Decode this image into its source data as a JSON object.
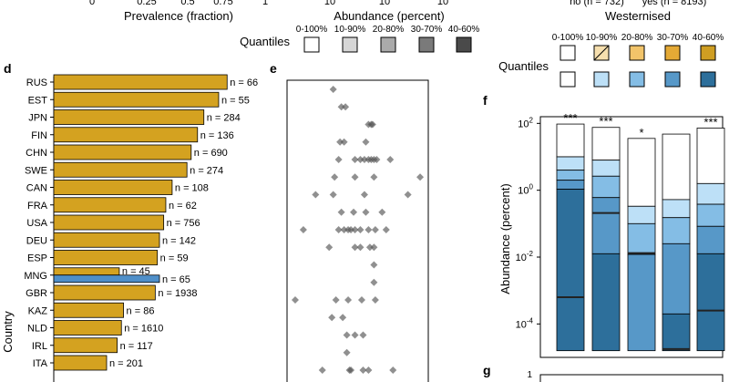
{
  "header": {
    "ticks_a": [
      "0",
      "0.25",
      "0.5",
      "0.75",
      "1"
    ],
    "label_a": "Prevalence (fraction)",
    "ticks_b": [
      "10",
      "10",
      "10"
    ],
    "label_b": "Abundance (percent)",
    "ticks_c": [
      "no (n = 732)",
      "yes (n = 8193)"
    ],
    "label_c": "Westernised"
  },
  "quantiles_gray": {
    "title": "Quantiles",
    "labels": [
      "0-100%",
      "10-90%",
      "20-80%",
      "30-70%",
      "40-60%"
    ],
    "colors": [
      "#ffffff",
      "#d6d6d6",
      "#aaaaaa",
      "#7a7a7a",
      "#4a4a4a"
    ]
  },
  "quantiles_color": {
    "title": "Quantiles",
    "labels": [
      "0-100%",
      "10-90%",
      "20-80%",
      "30-70%",
      "40-60%"
    ],
    "gold": [
      "#ffffff",
      "#f6dfae",
      "#f2c46a",
      "#e4a935",
      "#cf9e22"
    ],
    "blue": [
      "#ffffff",
      "#bde0f7",
      "#84bde5",
      "#5798c8",
      "#2d6f9b"
    ]
  },
  "panel_letters": {
    "d": "d",
    "e": "e",
    "f": "f",
    "g": "g"
  },
  "chart_data": [
    {
      "panel": "d",
      "type": "bar",
      "orientation": "horizontal",
      "ylabel": "Country",
      "xlim": [
        0,
        1
      ],
      "categories": [
        "RUS",
        "EST",
        "JPN",
        "FIN",
        "CHN",
        "SWE",
        "CAN",
        "FRA",
        "USA",
        "DEU",
        "ESP",
        "MNG",
        "GBR",
        "KAZ",
        "NLD",
        "IRL",
        "ITA"
      ],
      "values": [
        0.82,
        0.78,
        0.71,
        0.68,
        0.65,
        0.63,
        0.56,
        0.53,
        0.52,
        0.5,
        0.49,
        0.31,
        0.48,
        0.33,
        0.32,
        0.3,
        0.25
      ],
      "labels": [
        "n = 66",
        "n = 55",
        "n = 284",
        "n = 136",
        "n = 690",
        "n = 274",
        "n = 108",
        "n = 62",
        "n = 756",
        "n = 142",
        "n = 59",
        "n = 45",
        "n = 1938",
        "n = 86",
        "n = 1610",
        "n = 117",
        "n = 201"
      ],
      "mng_extra": {
        "value": 0.5,
        "label": "n = 65",
        "color": "#4f8fc9"
      },
      "bar_color": "#d4a220"
    },
    {
      "panel": "e",
      "type": "scatter",
      "note": "per-country abundance points (x in normalised abundance 0-1)",
      "rows": [
        {
          "country": "RUS",
          "x": [
            0.32
          ]
        },
        {
          "country": "EST",
          "x": [
            0.38,
            0.41
          ]
        },
        {
          "country": "JPN",
          "x": [
            0.58,
            0.6,
            0.61
          ]
        },
        {
          "country": "FIN",
          "x": [
            0.37,
            0.4,
            0.56
          ]
        },
        {
          "country": "CHN",
          "x": [
            0.36,
            0.48,
            0.52,
            0.55,
            0.58,
            0.6,
            0.62,
            0.64,
            0.74
          ]
        },
        {
          "country": "SWE",
          "x": [
            0.33,
            0.48,
            0.62,
            0.96
          ]
        },
        {
          "country": "CAN",
          "x": [
            0.19,
            0.32,
            0.55,
            0.87
          ]
        },
        {
          "country": "FRA",
          "x": [
            0.38,
            0.47,
            0.56,
            0.68
          ]
        },
        {
          "country": "USA",
          "x": [
            0.1,
            0.36,
            0.4,
            0.43,
            0.45,
            0.48,
            0.52,
            0.58,
            0.63,
            0.71
          ]
        },
        {
          "country": "DEU",
          "x": [
            0.29,
            0.48,
            0.52,
            0.59,
            0.62
          ]
        },
        {
          "country": "ESP",
          "x": [
            0.62
          ]
        },
        {
          "country": "MNG",
          "x": [
            0.62
          ]
        },
        {
          "country": "GBR",
          "x": [
            0.04,
            0.34,
            0.43,
            0.53,
            0.63
          ]
        },
        {
          "country": "KAZ",
          "x": [
            0.31,
            0.39
          ]
        },
        {
          "country": "NLD",
          "x": [
            0.42,
            0.48,
            0.54
          ]
        },
        {
          "country": "IRL",
          "x": [
            0.42
          ]
        },
        {
          "country": "ITA",
          "x": [
            0.24,
            0.44,
            0.45,
            0.54,
            0.58,
            0.76
          ]
        }
      ]
    },
    {
      "panel": "f",
      "type": "stacked-box",
      "ylabel": "Abundance (percent)",
      "yscale": "log10",
      "ylim_log10": [
        -5.0,
        2.2
      ],
      "yticks": [
        {
          "base": "10",
          "exp": "2",
          "value": 2
        },
        {
          "base": "10",
          "exp": "0",
          "value": 0
        },
        {
          "base": "10",
          "exp": "-2",
          "value": -2
        },
        {
          "base": "10",
          "exp": "-4",
          "value": -4
        }
      ],
      "colors": [
        "#ffffff",
        "#bde0f7",
        "#84bde5",
        "#5798c8",
        "#2d6f9b"
      ],
      "boxes": [
        {
          "star": "***",
          "bounds_log10": [
            1.98,
            1.0,
            0.6,
            0.3,
            0.03,
            -4.8
          ],
          "median_log10": -3.2
        },
        {
          "star": "***",
          "bounds_log10": [
            1.88,
            0.9,
            0.42,
            -0.22,
            -1.9,
            -4.8
          ],
          "median_log10": -0.68
        },
        {
          "star": "*",
          "bounds_log10": [
            1.55,
            -0.48,
            -1.0,
            -1.92,
            -4.8,
            -4.8
          ],
          "median_log10": -1.88
        },
        {
          "star": "",
          "bounds_log10": [
            1.68,
            -0.28,
            -0.82,
            -1.6,
            -3.7,
            -4.8
          ],
          "median_log10": -4.75
        },
        {
          "star": "***",
          "bounds_log10": [
            1.86,
            0.2,
            -0.42,
            -1.08,
            -1.9,
            -4.8
          ],
          "median_log10": -3.6
        }
      ]
    }
  ],
  "panel_g": {
    "ytick": "1"
  }
}
